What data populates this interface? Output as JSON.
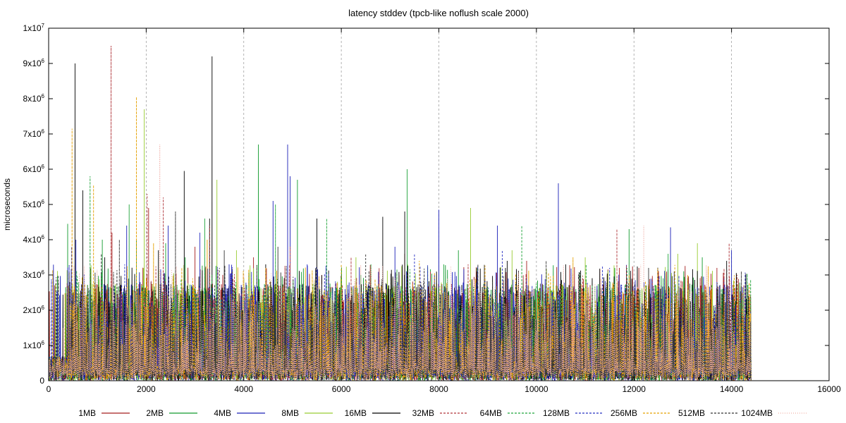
{
  "chart_data": {
    "type": "line",
    "title": "latency stddev (tpcb-like noflush scale 2000)",
    "xlabel": "",
    "ylabel": "microseconds",
    "xlim": [
      0,
      16000
    ],
    "ylim": [
      0,
      10000000
    ],
    "x_ticks": [
      "0",
      "2000",
      "4000",
      "6000",
      "8000",
      "10000",
      "12000",
      "14000",
      "16000"
    ],
    "y_ticks": [
      {
        "base": "0",
        "exp": ""
      },
      {
        "base": "1x10",
        "exp": "6"
      },
      {
        "base": "2x10",
        "exp": "6"
      },
      {
        "base": "3x10",
        "exp": "6"
      },
      {
        "base": "4x10",
        "exp": "6"
      },
      {
        "base": "5x10",
        "exp": "6"
      },
      {
        "base": "6x10",
        "exp": "6"
      },
      {
        "base": "7x10",
        "exp": "6"
      },
      {
        "base": "8x10",
        "exp": "6"
      },
      {
        "base": "9x10",
        "exp": "6"
      },
      {
        "base": "1x10",
        "exp": "7"
      }
    ],
    "grid": {
      "vertical": true,
      "horizontal": false
    },
    "legend_position": "bottom",
    "x_data_end": 14400,
    "series": [
      {
        "name": "1MB",
        "color": "#a51e1e",
        "dash": "solid",
        "peaks": [
          [
            1300,
            4200000
          ],
          [
            2050,
            4900000
          ],
          [
            3000,
            3800000
          ],
          [
            4200,
            3500000
          ],
          [
            5600,
            3000000
          ],
          [
            7300,
            3600000
          ],
          [
            9800,
            3400000
          ],
          [
            11700,
            3200000
          ],
          [
            12100,
            3200000
          ],
          [
            13700,
            3200000
          ]
        ]
      },
      {
        "name": "2MB",
        "color": "#129b2e",
        "dash": "solid",
        "peaks": [
          [
            390,
            4450000
          ],
          [
            1100,
            4000000
          ],
          [
            1800,
            4000000
          ],
          [
            2400,
            3900000
          ],
          [
            2800,
            3500000
          ],
          [
            4300,
            6700000
          ],
          [
            5100,
            5700000
          ],
          [
            6400,
            3000000
          ],
          [
            8400,
            3700000
          ],
          [
            11900,
            4300000
          ],
          [
            13400,
            3500000
          ]
        ]
      },
      {
        "name": "4MB",
        "color": "#1c21b8",
        "dash": "solid",
        "peaks": [
          [
            560,
            4000000
          ],
          [
            1600,
            4400000
          ],
          [
            2450,
            4400000
          ],
          [
            3700,
            3300000
          ],
          [
            4600,
            5100000
          ],
          [
            4900,
            6700000
          ],
          [
            4950,
            5800000
          ],
          [
            7100,
            3800000
          ],
          [
            8000,
            4850000
          ],
          [
            9200,
            4400000
          ],
          [
            10450,
            5600000
          ],
          [
            12750,
            4350000
          ],
          [
            14000,
            3700000
          ]
        ]
      },
      {
        "name": "8MB",
        "color": "#99cc33",
        "dash": "solid",
        "peaks": [
          [
            1960,
            7700000
          ],
          [
            3450,
            5700000
          ],
          [
            3850,
            3700000
          ],
          [
            6300,
            3500000
          ],
          [
            8650,
            4900000
          ],
          [
            9500,
            3700000
          ],
          [
            11000,
            3500000
          ],
          [
            12900,
            3600000
          ],
          [
            13300,
            3900000
          ]
        ]
      },
      {
        "name": "16MB",
        "color": "#000000",
        "dash": "solid",
        "peaks": [
          [
            540,
            9000000
          ],
          [
            700,
            5400000
          ],
          [
            1150,
            3500000
          ],
          [
            2250,
            3700000
          ],
          [
            2780,
            5950000
          ],
          [
            3300,
            4600000
          ],
          [
            3350,
            9200000
          ],
          [
            4450,
            3300000
          ],
          [
            5500,
            4600000
          ],
          [
            6850,
            4650000
          ],
          [
            7300,
            4800000
          ],
          [
            9400,
            3400000
          ],
          [
            10600,
            3300000
          ],
          [
            13900,
            3400000
          ]
        ]
      },
      {
        "name": "32MB",
        "color": "#b0353a",
        "dash": "dashed",
        "peaks": [
          [
            1280,
            9500000
          ],
          [
            2020,
            5300000
          ],
          [
            2350,
            5200000
          ],
          [
            3300,
            4400000
          ],
          [
            4950,
            3800000
          ],
          [
            6200,
            3500000
          ],
          [
            8600,
            3300000
          ],
          [
            11650,
            4300000
          ],
          [
            13950,
            3900000
          ]
        ]
      },
      {
        "name": "64MB",
        "color": "#1fa33a",
        "dash": "dashed",
        "peaks": [
          [
            850,
            5800000
          ],
          [
            1650,
            5000000
          ],
          [
            3200,
            4600000
          ],
          [
            4650,
            5000000
          ],
          [
            5700,
            4600000
          ],
          [
            7350,
            6000000
          ],
          [
            8100,
            3300000
          ],
          [
            9700,
            4400000
          ],
          [
            12700,
            3600000
          ]
        ]
      },
      {
        "name": "128MB",
        "color": "#2830c2",
        "dash": "dashed",
        "peaks": [
          [
            470,
            3800000
          ],
          [
            1560,
            3300000
          ],
          [
            3100,
            4200000
          ],
          [
            5300,
            3300000
          ],
          [
            7500,
            3600000
          ],
          [
            9300,
            3700000
          ],
          [
            11500,
            3200000
          ],
          [
            13700,
            2800000
          ]
        ]
      },
      {
        "name": "256MB",
        "color": "#e5a000",
        "dash": "dashed",
        "peaks": [
          [
            480,
            7150000
          ],
          [
            920,
            5550000
          ],
          [
            1800,
            8050000
          ],
          [
            2150,
            3900000
          ],
          [
            3250,
            4000000
          ],
          [
            6000,
            3300000
          ],
          [
            7600,
            3400000
          ],
          [
            10750,
            3500000
          ],
          [
            13100,
            3000000
          ]
        ]
      },
      {
        "name": "512MB",
        "color": "#333333",
        "dash": "dashed",
        "peaks": [
          [
            200,
            2800000
          ],
          [
            1080,
            3600000
          ],
          [
            1450,
            4000000
          ],
          [
            2600,
            4800000
          ],
          [
            3600,
            3700000
          ],
          [
            4700,
            3800000
          ],
          [
            6500,
            3600000
          ],
          [
            8800,
            3300000
          ],
          [
            10200,
            3400000
          ],
          [
            12300,
            3200000
          ],
          [
            14200,
            3100000
          ]
        ]
      },
      {
        "name": "1024MB",
        "color": "#f0b0a8",
        "dash": "dotted",
        "peaks": [
          [
            300,
            1500000
          ],
          [
            2280,
            6700000
          ],
          [
            4000,
            3000000
          ],
          [
            6000,
            2600000
          ],
          [
            8200,
            2400000
          ],
          [
            10300,
            2500000
          ],
          [
            12200,
            4400000
          ],
          [
            14000,
            2300000
          ]
        ]
      }
    ]
  }
}
